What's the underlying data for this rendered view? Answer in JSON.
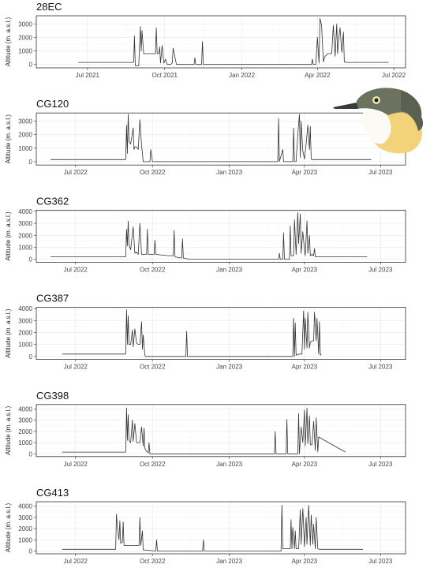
{
  "chart_data": [
    {
      "type": "line",
      "title": "28EC",
      "ylabel": "Altitude (m. a.s.l.)",
      "ylim": [
        -250,
        3600
      ],
      "yticks": [
        0,
        1000,
        2000,
        3000
      ],
      "xlim": [
        "2021-05-01",
        "2022-07-15"
      ],
      "xticks": [
        {
          "date": "2021-07-01",
          "label": "Jul 2021"
        },
        {
          "date": "2021-10-01",
          "label": "Oct 2021"
        },
        {
          "date": "2022-01-01",
          "label": "Jan 2022"
        },
        {
          "date": "2022-04-01",
          "label": "Apr 2022"
        },
        {
          "date": "2022-07-01",
          "label": "Jul 2022"
        }
      ],
      "grid": true,
      "series": [
        {
          "x": [
            "2021-06-20",
            "2021-08-25",
            "2021-08-26",
            "2021-08-27",
            "2021-08-31",
            "2021-09-02",
            "2021-09-03",
            "2021-09-04",
            "2021-09-06",
            "2021-09-07",
            "2021-09-09",
            "2021-09-12",
            "2021-09-20",
            "2021-09-21",
            "2021-09-22",
            "2021-09-24",
            "2021-09-25",
            "2021-09-26",
            "2021-09-28",
            "2021-09-30",
            "2021-10-02",
            "2021-10-04",
            "2021-10-05",
            "2021-10-08",
            "2021-10-10",
            "2021-10-11",
            "2021-10-15",
            "2021-10-16",
            "2021-10-17",
            "2021-11-05",
            "2021-11-06",
            "2021-11-07",
            "2021-11-14",
            "2021-11-15",
            "2021-11-16",
            "2021-11-30",
            "2021-12-01",
            "2021-12-02",
            "2022-03-25",
            "2022-03-26",
            "2022-03-27",
            "2022-03-30",
            "2022-04-01",
            "2022-04-03",
            "2022-04-04",
            "2022-04-06",
            "2022-04-08",
            "2022-04-10",
            "2022-04-12",
            "2022-04-13",
            "2022-04-16",
            "2022-04-18",
            "2022-04-20",
            "2022-04-22",
            "2022-04-24",
            "2022-04-25",
            "2022-04-27",
            "2022-04-28",
            "2022-04-30",
            "2022-05-02",
            "2022-05-03",
            "2022-05-05",
            "2022-05-06",
            "2022-05-08",
            "2022-05-10",
            "2022-06-25"
          ],
          "y": [
            150,
            150,
            2100,
            -100,
            -100,
            2800,
            1000,
            2500,
            800,
            800,
            800,
            800,
            800,
            2700,
            800,
            800,
            1300,
            100,
            1400,
            100,
            400,
            0,
            0,
            0,
            100,
            1200,
            0,
            0,
            0,
            0,
            500,
            0,
            0,
            1700,
            0,
            0,
            0,
            0,
            0,
            400,
            0,
            0,
            2000,
            100,
            3400,
            2900,
            200,
            600,
            700,
            800,
            800,
            800,
            2900,
            600,
            3000,
            800,
            2300,
            2700,
            900,
            2400,
            200,
            150,
            150,
            150,
            150,
            150
          ]
        }
      ]
    },
    {
      "type": "line",
      "title": "CG120",
      "ylabel": "Altitude (m. a.s.l.)",
      "ylim": [
        -250,
        3600
      ],
      "yticks": [
        0,
        1000,
        2000,
        3000
      ],
      "xlim": [
        "2022-05-15",
        "2023-07-31"
      ],
      "xticks": [
        {
          "date": "2022-07-01",
          "label": "Jul 2022"
        },
        {
          "date": "2022-10-01",
          "label": "Oct 2022"
        },
        {
          "date": "2023-01-01",
          "label": "Jan 2023"
        },
        {
          "date": "2023-04-01",
          "label": "Apr 2023"
        },
        {
          "date": "2023-07-01",
          "label": "Jul 2023"
        }
      ],
      "grid": true,
      "series": [
        {
          "x": [
            "2022-06-01",
            "2022-08-30",
            "2022-08-31",
            "2022-09-01",
            "2022-09-02",
            "2022-09-03",
            "2022-09-05",
            "2022-09-08",
            "2022-09-09",
            "2022-09-10",
            "2022-09-12",
            "2022-09-14",
            "2022-09-16",
            "2022-09-18",
            "2022-09-19",
            "2022-09-20",
            "2022-09-22",
            "2022-09-24",
            "2022-09-26",
            "2022-09-27",
            "2022-09-28",
            "2022-09-29",
            "2022-10-01",
            "2022-10-08",
            "2023-02-28",
            "2023-03-01",
            "2023-03-02",
            "2023-03-06",
            "2023-03-07",
            "2023-03-08",
            "2023-03-18",
            "2023-03-19",
            "2023-03-20",
            "2023-03-22",
            "2023-03-24",
            "2023-03-26",
            "2023-03-27",
            "2023-03-28",
            "2023-03-30",
            "2023-04-01",
            "2023-04-03",
            "2023-04-05",
            "2023-04-07",
            "2023-04-08",
            "2023-04-09",
            "2023-04-10",
            "2023-06-20"
          ],
          "y": [
            150,
            150,
            2700,
            600,
            3500,
            1500,
            1300,
            2500,
            900,
            1100,
            1100,
            900,
            3100,
            1200,
            600,
            0,
            0,
            0,
            0,
            0,
            0,
            900,
            0,
            0,
            0,
            3200,
            0,
            900,
            0,
            0,
            0,
            2500,
            0,
            0,
            2000,
            3500,
            300,
            3000,
            800,
            200,
            1300,
            2700,
            900,
            2600,
            200,
            150,
            150
          ]
        }
      ]
    },
    {
      "type": "line",
      "title": "CG362",
      "ylabel": "Altitude (m. a.s.l.)",
      "ylim": [
        -250,
        4100
      ],
      "yticks": [
        0,
        1000,
        2000,
        3000,
        4000
      ],
      "xlim": [
        "2022-05-15",
        "2023-07-31"
      ],
      "xticks": [
        {
          "date": "2022-07-01",
          "label": "Jul 2022"
        },
        {
          "date": "2022-10-01",
          "label": "Oct 2022"
        },
        {
          "date": "2023-01-01",
          "label": "Jan 2023"
        },
        {
          "date": "2023-04-01",
          "label": "Apr 2023"
        },
        {
          "date": "2023-07-01",
          "label": "Jul 2023"
        }
      ],
      "grid": true,
      "series": [
        {
          "x": [
            "2022-06-01",
            "2022-08-30",
            "2022-08-31",
            "2022-09-01",
            "2022-09-02",
            "2022-09-03",
            "2022-09-05",
            "2022-09-08",
            "2022-09-10",
            "2022-09-12",
            "2022-09-14",
            "2022-09-16",
            "2022-09-18",
            "2022-09-20",
            "2022-09-24",
            "2022-09-25",
            "2022-09-26",
            "2022-10-03",
            "2022-10-04",
            "2022-10-05",
            "2022-10-20",
            "2022-10-26",
            "2022-10-27",
            "2022-10-28",
            "2022-11-05",
            "2022-11-06",
            "2022-11-07",
            "2022-11-15",
            "2023-03-01",
            "2023-03-02",
            "2023-03-03",
            "2023-03-06",
            "2023-03-07",
            "2023-03-08",
            "2023-03-14",
            "2023-03-15",
            "2023-03-16",
            "2023-03-18",
            "2023-03-19",
            "2023-03-20",
            "2023-03-22",
            "2023-03-24",
            "2023-03-25",
            "2023-03-27",
            "2023-03-28",
            "2023-03-30",
            "2023-04-01",
            "2023-04-02",
            "2023-04-04",
            "2023-04-05",
            "2023-04-07",
            "2023-04-08",
            "2023-04-10",
            "2023-04-12",
            "2023-04-13",
            "2023-04-14",
            "2023-06-15"
          ],
          "y": [
            200,
            200,
            2500,
            1100,
            3200,
            1200,
            800,
            2700,
            500,
            600,
            400,
            3000,
            400,
            400,
            400,
            2500,
            400,
            400,
            1600,
            400,
            300,
            300,
            2400,
            200,
            100,
            1700,
            100,
            0,
            0,
            500,
            0,
            0,
            2200,
            0,
            0,
            2800,
            300,
            300,
            300,
            3300,
            400,
            3900,
            1300,
            3800,
            500,
            2300,
            800,
            300,
            3200,
            500,
            2000,
            300,
            400,
            300,
            900,
            200,
            200
          ]
        }
      ]
    },
    {
      "type": "line",
      "title": "CG387",
      "ylabel": "Altitude (m. a.s.l.)",
      "ylim": [
        -250,
        4100
      ],
      "yticks": [
        0,
        1000,
        2000,
        3000,
        4000
      ],
      "xlim": [
        "2022-05-15",
        "2023-07-31"
      ],
      "xticks": [
        {
          "date": "2022-07-01",
          "label": "Jul 2022"
        },
        {
          "date": "2022-10-01",
          "label": "Oct 2022"
        },
        {
          "date": "2023-01-01",
          "label": "Jan 2023"
        },
        {
          "date": "2023-04-01",
          "label": "Apr 2023"
        },
        {
          "date": "2023-07-01",
          "label": "Jul 2023"
        }
      ],
      "grid": true,
      "series": [
        {
          "x": [
            "2022-06-15",
            "2022-08-30",
            "2022-08-31",
            "2022-09-01",
            "2022-09-02",
            "2022-09-03",
            "2022-09-05",
            "2022-09-07",
            "2022-09-08",
            "2022-09-10",
            "2022-09-12",
            "2022-09-14",
            "2022-09-16",
            "2022-09-18",
            "2022-09-19",
            "2022-09-20",
            "2022-09-22",
            "2022-09-23",
            "2022-09-24",
            "2022-09-25",
            "2022-11-10",
            "2022-11-11",
            "2022-11-12",
            "2023-03-18",
            "2023-03-19",
            "2023-03-20",
            "2023-03-21",
            "2023-03-22",
            "2023-03-26",
            "2023-03-28",
            "2023-03-29",
            "2023-03-31",
            "2023-04-01",
            "2023-04-02",
            "2023-04-04",
            "2023-04-05",
            "2023-04-07",
            "2023-04-08",
            "2023-04-10",
            "2023-04-12",
            "2023-04-13",
            "2023-04-15",
            "2023-04-16",
            "2023-04-18",
            "2023-04-19",
            "2023-04-20",
            "2023-04-21"
          ],
          "y": [
            200,
            200,
            3900,
            1000,
            3400,
            1000,
            1000,
            2200,
            800,
            2300,
            1100,
            1000,
            1000,
            2900,
            600,
            1800,
            100,
            0,
            0,
            0,
            0,
            2100,
            0,
            0,
            3200,
            0,
            2800,
            100,
            200,
            200,
            200,
            3800,
            600,
            3200,
            700,
            3700,
            700,
            1200,
            1300,
            1300,
            3700,
            1300,
            3200,
            200,
            2900,
            100,
            200
          ]
        }
      ]
    },
    {
      "type": "line",
      "title": "CG398",
      "ylabel": "Altitude (m. a.s.l.)",
      "ylim": [
        -250,
        4400
      ],
      "yticks": [
        0,
        1000,
        2000,
        3000,
        4000
      ],
      "xlim": [
        "2022-05-15",
        "2023-07-31"
      ],
      "xticks": [
        {
          "date": "2022-07-01",
          "label": "Jul 2022"
        },
        {
          "date": "2022-10-01",
          "label": "Oct 2022"
        },
        {
          "date": "2023-01-01",
          "label": "Jan 2023"
        },
        {
          "date": "2023-04-01",
          "label": "Apr 2023"
        },
        {
          "date": "2023-07-01",
          "label": "Jul 2023"
        }
      ],
      "grid": true,
      "series": [
        {
          "x": [
            "2022-06-15",
            "2022-08-30",
            "2022-08-31",
            "2022-09-01",
            "2022-09-02",
            "2022-09-03",
            "2022-09-05",
            "2022-09-07",
            "2022-09-08",
            "2022-09-10",
            "2022-09-12",
            "2022-09-14",
            "2022-09-16",
            "2022-09-18",
            "2022-09-20",
            "2022-09-21",
            "2022-09-22",
            "2022-09-24",
            "2022-09-26",
            "2022-09-27",
            "2022-09-28",
            "2022-09-30",
            "2022-10-02",
            "2022-10-03",
            "2023-02-24",
            "2023-02-25",
            "2023-02-26",
            "2023-03-10",
            "2023-03-11",
            "2023-03-12",
            "2023-03-24",
            "2023-03-25",
            "2023-03-26",
            "2023-03-28",
            "2023-03-30",
            "2023-04-01",
            "2023-04-02",
            "2023-04-04",
            "2023-04-05",
            "2023-04-07",
            "2023-04-08",
            "2023-04-10",
            "2023-04-12",
            "2023-04-14",
            "2023-04-15",
            "2023-04-17",
            "2023-04-18",
            "2023-05-20"
          ],
          "y": [
            150,
            150,
            4100,
            1200,
            3500,
            1200,
            1000,
            3000,
            1100,
            2700,
            1000,
            1000,
            1000,
            2400,
            700,
            2300,
            500,
            200,
            100,
            1000,
            0,
            0,
            0,
            0,
            0,
            2000,
            0,
            0,
            3100,
            0,
            0,
            3600,
            0,
            2400,
            1000,
            3900,
            700,
            4100,
            900,
            3400,
            800,
            800,
            2900,
            300,
            3200,
            150,
            1500,
            150
          ]
        }
      ]
    },
    {
      "type": "line",
      "title": "CG413",
      "ylabel": "Altitude (m. a.s.l.)",
      "ylim": [
        -250,
        4400
      ],
      "yticks": [
        0,
        1000,
        2000,
        3000,
        4000
      ],
      "xlim": [
        "2022-05-15",
        "2023-07-31"
      ],
      "xticks": [
        {
          "date": "2022-07-01",
          "label": "Jul 2022"
        },
        {
          "date": "2022-10-01",
          "label": "Oct 2022"
        },
        {
          "date": "2023-01-01",
          "label": "Jan 2023"
        },
        {
          "date": "2023-04-01",
          "label": "Apr 2023"
        },
        {
          "date": "2023-07-01",
          "label": "Jul 2023"
        }
      ],
      "grid": true,
      "series": [
        {
          "x": [
            "2022-06-15",
            "2022-08-18",
            "2022-08-19",
            "2022-08-20",
            "2022-08-22",
            "2022-08-23",
            "2022-08-24",
            "2022-08-26",
            "2022-08-27",
            "2022-08-28",
            "2022-08-30",
            "2022-08-31",
            "2022-09-01",
            "2022-09-10",
            "2022-09-15",
            "2022-09-16",
            "2022-09-17",
            "2022-09-19",
            "2022-09-20",
            "2022-10-05",
            "2022-10-06",
            "2022-10-07",
            "2022-11-30",
            "2022-12-01",
            "2022-12-02",
            "2023-03-04",
            "2023-03-05",
            "2023-03-06",
            "2023-03-08",
            "2023-03-15",
            "2023-03-16",
            "2023-03-17",
            "2023-03-18",
            "2023-03-20",
            "2023-03-21",
            "2023-03-22",
            "2023-03-25",
            "2023-03-27",
            "2023-03-28",
            "2023-03-30",
            "2023-04-01",
            "2023-04-03",
            "2023-04-04",
            "2023-04-06",
            "2023-04-08",
            "2023-04-09",
            "2023-04-11",
            "2023-04-12",
            "2023-04-14",
            "2023-04-15",
            "2023-04-17",
            "2023-04-19",
            "2023-06-10"
          ],
          "y": [
            150,
            150,
            3300,
            2200,
            1000,
            2700,
            700,
            800,
            2600,
            500,
            500,
            500,
            500,
            500,
            500,
            3000,
            500,
            1800,
            100,
            0,
            1000,
            0,
            0,
            1000,
            0,
            0,
            4100,
            200,
            200,
            200,
            2800,
            200,
            2100,
            200,
            1800,
            200,
            200,
            3700,
            600,
            3800,
            400,
            3000,
            600,
            4100,
            500,
            3200,
            600,
            2400,
            200,
            3000,
            200,
            150,
            150
          ]
        }
      ]
    }
  ]
}
